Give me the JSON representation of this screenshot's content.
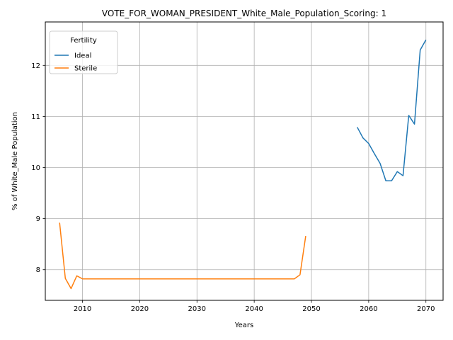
{
  "chart_data": {
    "type": "line",
    "title": "VOTE_FOR_WOMAN_PRESIDENT_White_Male_Population_Scoring: 1",
    "xlabel": "Years",
    "ylabel": "% of White_Male Population",
    "xlim": [
      2003.5,
      2073
    ],
    "ylim": [
      7.4,
      12.85
    ],
    "xticks": [
      2010,
      2020,
      2030,
      2040,
      2050,
      2060,
      2070
    ],
    "yticks": [
      8,
      9,
      10,
      11,
      12
    ],
    "grid": true,
    "legend": {
      "title": "Fertility",
      "placement": "top-left"
    },
    "series": [
      {
        "name": "Ideal",
        "color": "#1f77b4",
        "x": [
          2058,
          2059,
          2060,
          2061,
          2062,
          2063,
          2064,
          2065,
          2066,
          2067,
          2068,
          2069,
          2070
        ],
        "y": [
          10.79,
          10.58,
          10.47,
          10.27,
          10.08,
          9.74,
          9.74,
          9.92,
          9.84,
          11.02,
          10.85,
          12.3,
          12.5
        ]
      },
      {
        "name": "Sterile",
        "color": "#ff7f0e",
        "x": [
          2006,
          2007,
          2008,
          2009,
          2010,
          2011,
          2012,
          2013,
          2014,
          2015,
          2016,
          2017,
          2018,
          2019,
          2020,
          2021,
          2022,
          2023,
          2024,
          2025,
          2026,
          2027,
          2028,
          2029,
          2030,
          2031,
          2032,
          2033,
          2034,
          2035,
          2036,
          2037,
          2038,
          2039,
          2040,
          2041,
          2042,
          2043,
          2044,
          2045,
          2046,
          2047,
          2048,
          2049
        ],
        "y": [
          8.92,
          7.83,
          7.63,
          7.88,
          7.82,
          7.82,
          7.82,
          7.82,
          7.82,
          7.82,
          7.82,
          7.82,
          7.82,
          7.82,
          7.82,
          7.82,
          7.82,
          7.82,
          7.82,
          7.82,
          7.82,
          7.82,
          7.82,
          7.82,
          7.82,
          7.82,
          7.82,
          7.82,
          7.82,
          7.82,
          7.82,
          7.82,
          7.82,
          7.82,
          7.82,
          7.82,
          7.82,
          7.82,
          7.82,
          7.82,
          7.82,
          7.82,
          7.9,
          8.66
        ]
      }
    ]
  }
}
